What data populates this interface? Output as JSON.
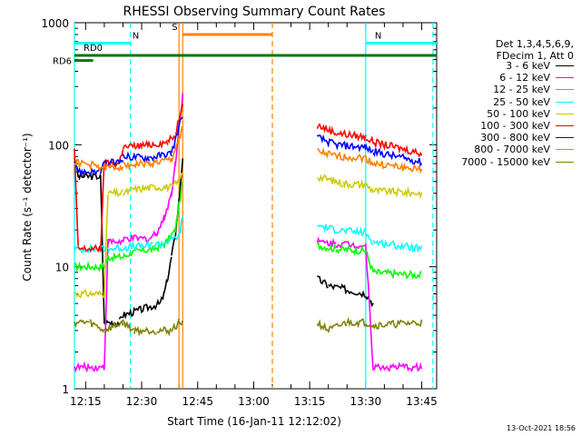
{
  "chart_data": {
    "type": "line",
    "title": "RHESSI Observing Summary Count Rates",
    "xlabel": "Start Time (16-Jan-11 12:12:02)",
    "ylabel": "Count Rate (s⁻¹ detector⁻¹)",
    "yscale": "log",
    "ylim": [
      1,
      1000
    ],
    "xlim_minutes": [
      0,
      97
    ],
    "x_ticks": [
      {
        "label": "12:15",
        "min": 3
      },
      {
        "label": "12:30",
        "min": 18
      },
      {
        "label": "12:45",
        "min": 33
      },
      {
        "label": "13:00",
        "min": 48
      },
      {
        "label": "13:15",
        "min": 63
      },
      {
        "label": "13:30",
        "min": 78
      },
      {
        "label": "13:45",
        "min": 93
      }
    ],
    "y_ticks": [
      1,
      10,
      100,
      1000
    ],
    "legend_title": [
      "Det 1,3,4,5,6,9,",
      "FDecim 1, Att 0"
    ],
    "legend_placement": "right",
    "series": [
      {
        "name": "3 - 6 keV",
        "color": "#000000",
        "values": [
          [
            0,
            80
          ],
          [
            1,
            55
          ],
          [
            7,
            55
          ],
          [
            8,
            3.5
          ],
          [
            12,
            3.5
          ],
          [
            13,
            4
          ],
          [
            23,
            5
          ],
          [
            24,
            6
          ],
          [
            25,
            8
          ],
          [
            26,
            12
          ],
          [
            27,
            18
          ],
          [
            28,
            35
          ],
          [
            29,
            80
          ],
          [
            65,
            8
          ],
          [
            68,
            7
          ],
          [
            73,
            6.5
          ],
          [
            78,
            6
          ],
          [
            80,
            5
          ]
        ]
      },
      {
        "name": "6 - 12 keV",
        "color": "#ff00ff",
        "values": [
          [
            0,
            1.5
          ],
          [
            8,
            1.5
          ],
          [
            9,
            16
          ],
          [
            13,
            16
          ],
          [
            14,
            17
          ],
          [
            20,
            17
          ],
          [
            22,
            19
          ],
          [
            24,
            25
          ],
          [
            26,
            40
          ],
          [
            27,
            70
          ],
          [
            28,
            140
          ],
          [
            29,
            260
          ],
          [
            65,
            16
          ],
          [
            70,
            15.5
          ],
          [
            78,
            15
          ],
          [
            80,
            1.5
          ],
          [
            93,
            1.5
          ]
        ]
      },
      {
        "name": "12 - 25 keV",
        "color": "#00ff00",
        "values": [
          [
            0,
            10
          ],
          [
            8,
            10
          ],
          [
            9,
            12
          ],
          [
            13,
            12
          ],
          [
            15,
            13
          ],
          [
            21,
            14
          ],
          [
            24,
            15
          ],
          [
            27,
            20
          ],
          [
            29,
            50
          ],
          [
            65,
            15
          ],
          [
            70,
            14
          ],
          [
            78,
            13.5
          ],
          [
            80,
            9
          ],
          [
            93,
            8.5
          ]
        ]
      },
      {
        "name": "25 - 50 keV",
        "color": "#00ffff",
        "values": [
          [
            0,
            14
          ],
          [
            8,
            14
          ],
          [
            9,
            14
          ],
          [
            21,
            15
          ],
          [
            25,
            16
          ],
          [
            28,
            18
          ],
          [
            29,
            25
          ],
          [
            65,
            22
          ],
          [
            70,
            20
          ],
          [
            78,
            19
          ],
          [
            80,
            16
          ],
          [
            93,
            14
          ]
        ]
      },
      {
        "name": "50 - 100 keV",
        "color": "#cccc00",
        "values": [
          [
            0,
            6
          ],
          [
            8,
            6
          ],
          [
            9,
            40
          ],
          [
            13,
            40
          ],
          [
            16,
            43
          ],
          [
            22,
            45
          ],
          [
            26,
            45
          ],
          [
            28,
            50
          ],
          [
            29,
            60
          ],
          [
            65,
            55
          ],
          [
            72,
            48
          ],
          [
            78,
            47
          ],
          [
            80,
            42
          ],
          [
            93,
            40
          ]
        ]
      },
      {
        "name": "100 - 300 keV",
        "color": "#ff0000",
        "values": [
          [
            0,
            90
          ],
          [
            1,
            14
          ],
          [
            7,
            14
          ],
          [
            8,
            70
          ],
          [
            12,
            70
          ],
          [
            13,
            95
          ],
          [
            20,
            100
          ],
          [
            25,
            105
          ],
          [
            27,
            120
          ],
          [
            29,
            230
          ],
          [
            65,
            145
          ],
          [
            70,
            125
          ],
          [
            78,
            115
          ],
          [
            80,
            105
          ],
          [
            93,
            85
          ]
        ]
      },
      {
        "name": "300 - 800 keV",
        "color": "#0000ff",
        "values": [
          [
            0,
            78
          ],
          [
            1,
            60
          ],
          [
            7,
            60
          ],
          [
            8,
            70
          ],
          [
            12,
            72
          ],
          [
            13,
            80
          ],
          [
            20,
            78
          ],
          [
            26,
            85
          ],
          [
            29,
            180
          ],
          [
            65,
            115
          ],
          [
            70,
            100
          ],
          [
            78,
            95
          ],
          [
            80,
            88
          ],
          [
            93,
            72
          ]
        ]
      },
      {
        "name": "800 - 7000 keV",
        "color": "#ff8000",
        "values": [
          [
            0,
            72
          ],
          [
            8,
            65
          ],
          [
            12,
            65
          ],
          [
            13,
            68
          ],
          [
            20,
            70
          ],
          [
            26,
            75
          ],
          [
            29,
            140
          ],
          [
            65,
            88
          ],
          [
            70,
            80
          ],
          [
            78,
            78
          ],
          [
            80,
            70
          ],
          [
            93,
            62
          ]
        ]
      },
      {
        "name": "7000 - 15000 keV",
        "color": "#808000",
        "values": [
          [
            0,
            3.5
          ],
          [
            4,
            3.5
          ],
          [
            8,
            3
          ],
          [
            13,
            3.5
          ],
          [
            16,
            3
          ],
          [
            22,
            3
          ],
          [
            26,
            3
          ],
          [
            28,
            3.5
          ],
          [
            29,
            3.5
          ],
          [
            65,
            3.5
          ],
          [
            68,
            3
          ],
          [
            73,
            3.5
          ],
          [
            78,
            3.5
          ],
          [
            80,
            3.3
          ],
          [
            93,
            3.5
          ]
        ]
      }
    ],
    "flags": [
      {
        "label": "RD0",
        "color": "#007700",
        "level": 540,
        "x": [
          0,
          97
        ]
      },
      {
        "label": "RD6",
        "color": "#007700",
        "level": 490,
        "x": [
          0,
          5
        ]
      },
      {
        "label": "N",
        "color": "#00ffff",
        "level": 680,
        "x": [
          0,
          15
        ]
      },
      {
        "label": "N",
        "color": "#00ffff",
        "level": 680,
        "x": [
          78,
          97
        ]
      },
      {
        "label": "S",
        "color": "#ff8000",
        "level": 800,
        "x": [
          29,
          53
        ]
      }
    ],
    "vlines": [
      {
        "x": 0,
        "color": "#00ffff",
        "dash": false
      },
      {
        "x": 15,
        "color": "#00ffff",
        "dash": true
      },
      {
        "x": 28,
        "color": "#ff8000",
        "dash": false
      },
      {
        "x": 29,
        "color": "#ff8000",
        "dash": false
      },
      {
        "x": 53,
        "color": "#ff8000",
        "dash": true
      },
      {
        "x": 78,
        "color": "#00ffff",
        "dash": false
      },
      {
        "x": 96,
        "color": "#00ffff",
        "dash": true
      }
    ],
    "gaps": [
      [
        30,
        64
      ]
    ]
  },
  "footer": {
    "timestamp": "13-Oct-2021 18:56"
  }
}
